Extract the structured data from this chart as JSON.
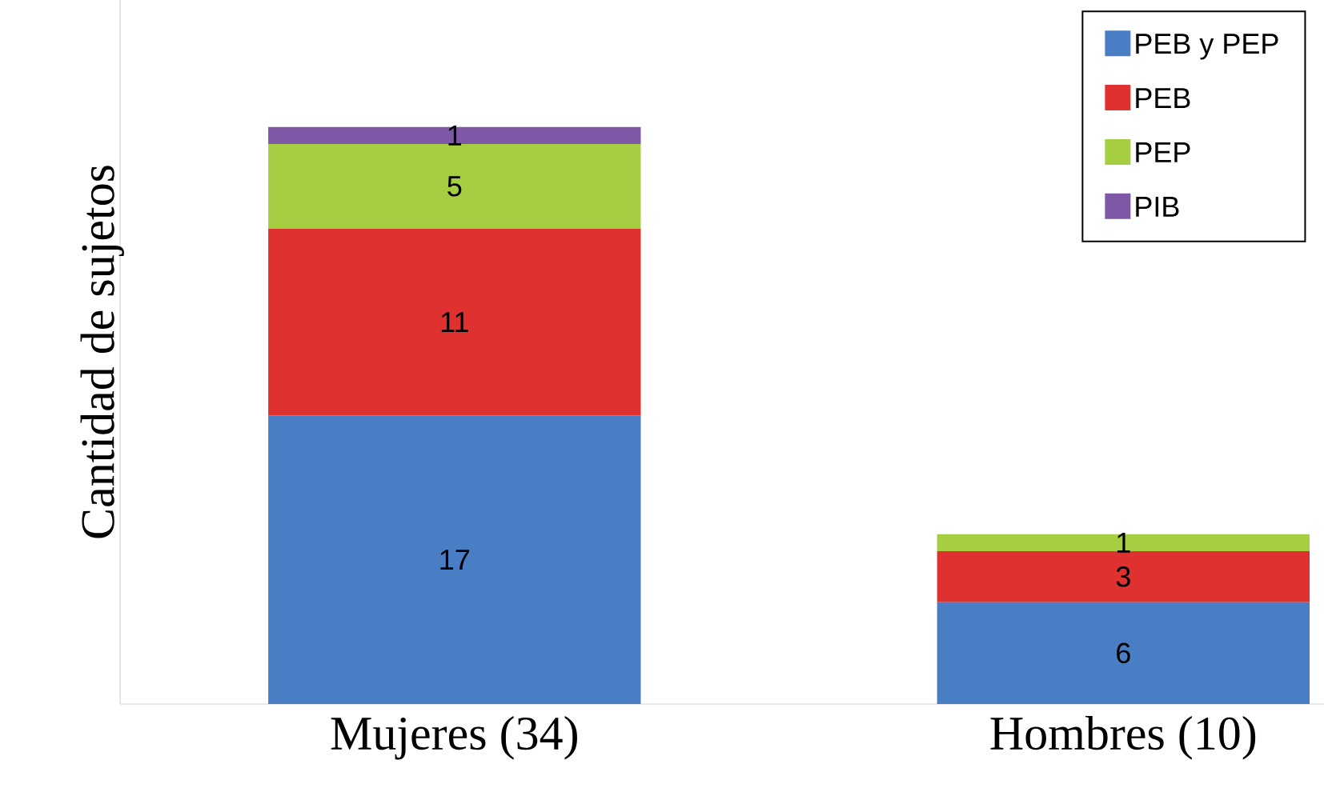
{
  "chart_data": {
    "type": "bar",
    "stacked": true,
    "ylabel": "Cantidad de sujetos",
    "categories": [
      "Mujeres (34)",
      "Hombres (10)"
    ],
    "series": [
      {
        "name": "PEB y PEP",
        "color": "#4a7ec4",
        "values": [
          17,
          6
        ]
      },
      {
        "name": "PEB",
        "color": "#e03131",
        "values": [
          11,
          3
        ]
      },
      {
        "name": "PEP",
        "color": "#a6ce42",
        "values": [
          5,
          1
        ]
      },
      {
        "name": "PIB",
        "color": "#7e58a6",
        "values": [
          1,
          null
        ]
      }
    ],
    "data_labels": true,
    "legend": "top right"
  }
}
